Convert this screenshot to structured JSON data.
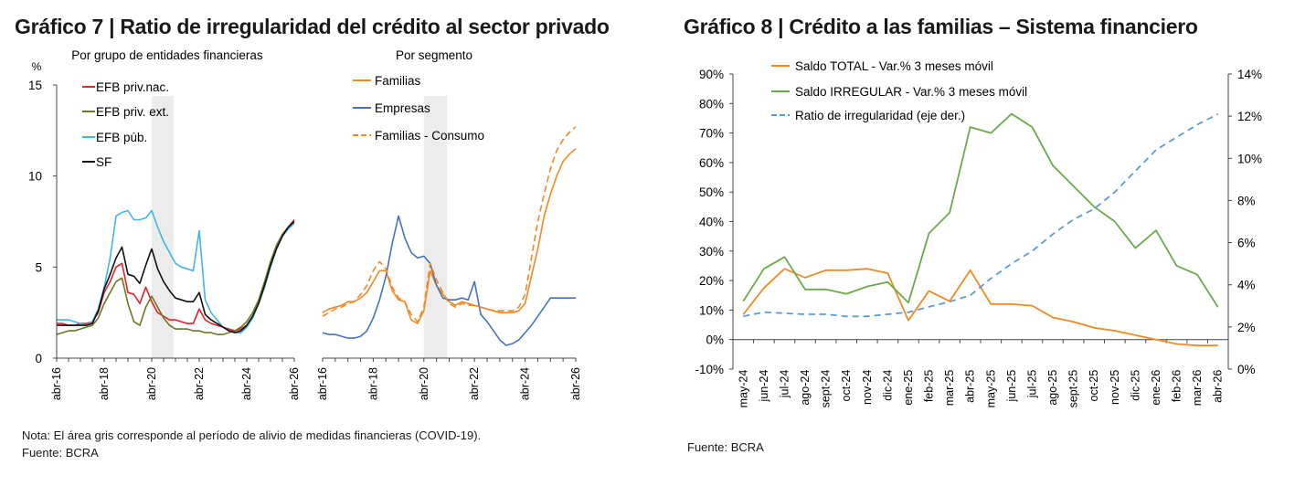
{
  "chart7": {
    "title": "Gráfico 7 | Ratio de irregularidad del crédito al sector privado",
    "note": "Nota: El área gris corresponde al período de alivio de medidas financieras (COVID-19).",
    "source": "Fuente: BCRA",
    "highlight": {
      "from": "abr-20",
      "to": "mar-21"
    }
  },
  "chart8": {
    "title": "Gráfico 8 | Crédito a las familias – Sistema financiero",
    "source": "Fuente: BCRA"
  },
  "colors": {
    "red": "#e8202a",
    "olive": "#6b7a1e",
    "cyan": "#3fb6e6",
    "black": "#111111",
    "orange": "#f08a24",
    "blue": "#4472c4",
    "green": "#6aaa48",
    "dash_blue": "#5b9bd5",
    "shade": "#ececec"
  },
  "chart_data": [
    {
      "type": "line",
      "subtitle": "Por grupo de entidades financieras",
      "ylabel": "%",
      "ylim": [
        0,
        15
      ],
      "yticks": [
        0,
        5,
        10,
        15
      ],
      "xticks": [
        "abr-16",
        "abr-18",
        "abr-20",
        "abr-22",
        "abr-24",
        "abr-26"
      ],
      "x": [
        0,
        3,
        6,
        9,
        12,
        15,
        18,
        21,
        24,
        27,
        30,
        33,
        36,
        39,
        42,
        45,
        48,
        51,
        54,
        57,
        60,
        63,
        66,
        69,
        72,
        75,
        78,
        81,
        84,
        87,
        90,
        93,
        96,
        99,
        102,
        105,
        108,
        111,
        114,
        117,
        120
      ],
      "series": [
        {
          "name": "EFB priv.nac.",
          "color": "red",
          "values": [
            1.9,
            1.9,
            1.8,
            1.8,
            1.9,
            1.9,
            2.0,
            2.5,
            3.6,
            4.2,
            5.0,
            5.2,
            3.6,
            3.5,
            3.0,
            3.9,
            3.1,
            2.5,
            2.3,
            2.1,
            2.1,
            2.0,
            1.9,
            1.9,
            2.7,
            2.1,
            1.9,
            1.8,
            1.7,
            1.6,
            1.5,
            1.6,
            1.8,
            2.3,
            3.0,
            4.0,
            5.2,
            6.0,
            6.8,
            7.2,
            7.6
          ]
        },
        {
          "name": "EFB priv. ext.",
          "color": "olive",
          "values": [
            1.3,
            1.4,
            1.5,
            1.5,
            1.6,
            1.7,
            1.8,
            2.2,
            3.0,
            3.6,
            4.2,
            4.4,
            3.0,
            2.0,
            1.8,
            2.8,
            3.4,
            2.8,
            2.2,
            1.8,
            1.6,
            1.6,
            1.6,
            1.5,
            1.5,
            1.4,
            1.4,
            1.3,
            1.3,
            1.4,
            1.5,
            1.7,
            2.0,
            2.5,
            3.2,
            4.2,
            5.3,
            6.2,
            6.8,
            7.2,
            7.5
          ]
        },
        {
          "name": "EFB púb.",
          "color": "cyan",
          "values": [
            2.1,
            2.1,
            2.1,
            2.0,
            1.9,
            1.8,
            2.0,
            2.7,
            3.9,
            5.5,
            7.8,
            8.0,
            8.1,
            7.6,
            7.6,
            7.7,
            8.1,
            7.2,
            6.4,
            5.8,
            5.2,
            5.0,
            4.9,
            4.8,
            7.0,
            3.2,
            2.5,
            2.1,
            1.7,
            1.5,
            1.4,
            1.4,
            1.7,
            2.2,
            3.0,
            3.9,
            5.0,
            6.0,
            6.7,
            7.1,
            7.4
          ]
        },
        {
          "name": "SF",
          "color": "black",
          "values": [
            1.8,
            1.8,
            1.8,
            1.8,
            1.8,
            1.8,
            1.9,
            2.6,
            3.8,
            4.6,
            5.5,
            6.1,
            4.6,
            4.5,
            4.1,
            5.1,
            6.0,
            4.9,
            4.2,
            3.7,
            3.3,
            3.2,
            3.1,
            3.1,
            3.6,
            2.4,
            2.1,
            1.9,
            1.7,
            1.5,
            1.4,
            1.5,
            1.8,
            2.3,
            3.0,
            4.0,
            5.1,
            6.0,
            6.7,
            7.2,
            7.5
          ]
        }
      ]
    },
    {
      "type": "line",
      "subtitle": "Por segmento",
      "ylim": [
        0,
        15
      ],
      "xticks": [
        "abr-16",
        "abr-18",
        "abr-20",
        "abr-22",
        "abr-24",
        "abr-26"
      ],
      "x": [
        0,
        3,
        6,
        9,
        12,
        15,
        18,
        21,
        24,
        27,
        30,
        33,
        36,
        39,
        42,
        45,
        48,
        51,
        54,
        57,
        60,
        63,
        66,
        69,
        72,
        75,
        78,
        81,
        84,
        87,
        90,
        93,
        96,
        99,
        102,
        105,
        108,
        111,
        114,
        117,
        120
      ],
      "series": [
        {
          "name": "Familias",
          "color": "orange",
          "values": [
            2.5,
            2.7,
            2.8,
            2.9,
            3.1,
            3.1,
            3.3,
            3.6,
            4.2,
            4.8,
            4.8,
            3.7,
            3.2,
            3.1,
            2.1,
            1.9,
            2.6,
            4.8,
            4.0,
            3.5,
            3.1,
            2.9,
            3.1,
            3.0,
            2.9,
            2.8,
            2.7,
            2.6,
            2.5,
            2.5,
            2.5,
            2.6,
            3.0,
            4.5,
            6.0,
            7.8,
            9.0,
            10.0,
            10.8,
            11.2,
            11.5
          ]
        },
        {
          "name": "Empresas",
          "color": "blue",
          "values": [
            1.4,
            1.3,
            1.3,
            1.2,
            1.1,
            1.1,
            1.2,
            1.5,
            2.2,
            3.2,
            4.5,
            6.3,
            7.8,
            6.6,
            5.8,
            5.5,
            5.6,
            5.2,
            4.0,
            3.3,
            3.2,
            3.2,
            3.3,
            3.2,
            4.2,
            2.4,
            2.0,
            1.5,
            1.0,
            0.7,
            0.8,
            1.0,
            1.4,
            1.8,
            2.3,
            2.8,
            3.3,
            3.3,
            3.3,
            3.3,
            3.3
          ]
        },
        {
          "name": "Familias - Consumo",
          "color": "orange",
          "dash": true,
          "values": [
            2.3,
            2.5,
            2.7,
            2.8,
            3.0,
            3.1,
            3.5,
            4.0,
            4.8,
            5.3,
            4.9,
            3.9,
            3.3,
            3.1,
            2.4,
            2.0,
            2.8,
            5.2,
            4.3,
            3.6,
            3.0,
            2.8,
            3.0,
            2.9,
            2.9,
            2.8,
            2.7,
            2.6,
            2.6,
            2.6,
            2.6,
            2.8,
            3.5,
            5.5,
            7.5,
            9.0,
            10.4,
            11.4,
            12.0,
            12.4,
            12.7
          ]
        }
      ]
    },
    {
      "type": "line",
      "categories": [
        "may-24",
        "jun-24",
        "jul-24",
        "ago-24",
        "sept-24",
        "oct-24",
        "nov-24",
        "dic-24",
        "ene-25",
        "feb-25",
        "mar-25",
        "abr-25",
        "may-25",
        "jun-25",
        "jul-25",
        "ago-25",
        "sept-25",
        "oct-25",
        "nov-25",
        "dic-25",
        "ene-26",
        "feb-26",
        "mar-26",
        "abr-26"
      ],
      "ylim": [
        -10,
        90
      ],
      "yticks": [
        "-10%",
        "0%",
        "10%",
        "20%",
        "30%",
        "40%",
        "50%",
        "60%",
        "70%",
        "80%",
        "90%"
      ],
      "y2lim": [
        0,
        14
      ],
      "y2ticks": [
        "0%",
        "2%",
        "4%",
        "6%",
        "8%",
        "10%",
        "12%",
        "14%"
      ],
      "series": [
        {
          "name": "Saldo TOTAL - Var.% 3 meses móvil",
          "color": "orange",
          "axis": "left",
          "values": [
            8.5,
            17.5,
            24,
            21,
            23.5,
            23.5,
            24,
            22.5,
            6.5,
            16.5,
            13,
            23.5,
            12,
            12,
            11.5,
            7.5,
            6,
            4,
            3,
            1.5,
            0,
            -1.5,
            -2,
            -2
          ]
        },
        {
          "name": "Saldo IRREGULAR - Var.% 3 meses móvil",
          "color": "green",
          "axis": "left",
          "values": [
            13,
            24,
            28,
            17,
            17,
            15.5,
            18,
            19.5,
            12.5,
            36,
            43,
            72,
            70,
            76.5,
            72,
            59,
            52,
            45,
            40,
            31,
            37,
            25,
            22,
            11
          ]
        },
        {
          "name": "Ratio de irregularidad (eje der.)",
          "color": "dash_blue",
          "axis": "right",
          "dash": true,
          "values": [
            2.5,
            2.7,
            2.65,
            2.6,
            2.6,
            2.5,
            2.5,
            2.6,
            2.7,
            2.95,
            3.2,
            3.5,
            4.3,
            5.0,
            5.6,
            6.4,
            7.1,
            7.6,
            8.4,
            9.4,
            10.4,
            11.0,
            11.6,
            12.1
          ]
        }
      ]
    }
  ]
}
